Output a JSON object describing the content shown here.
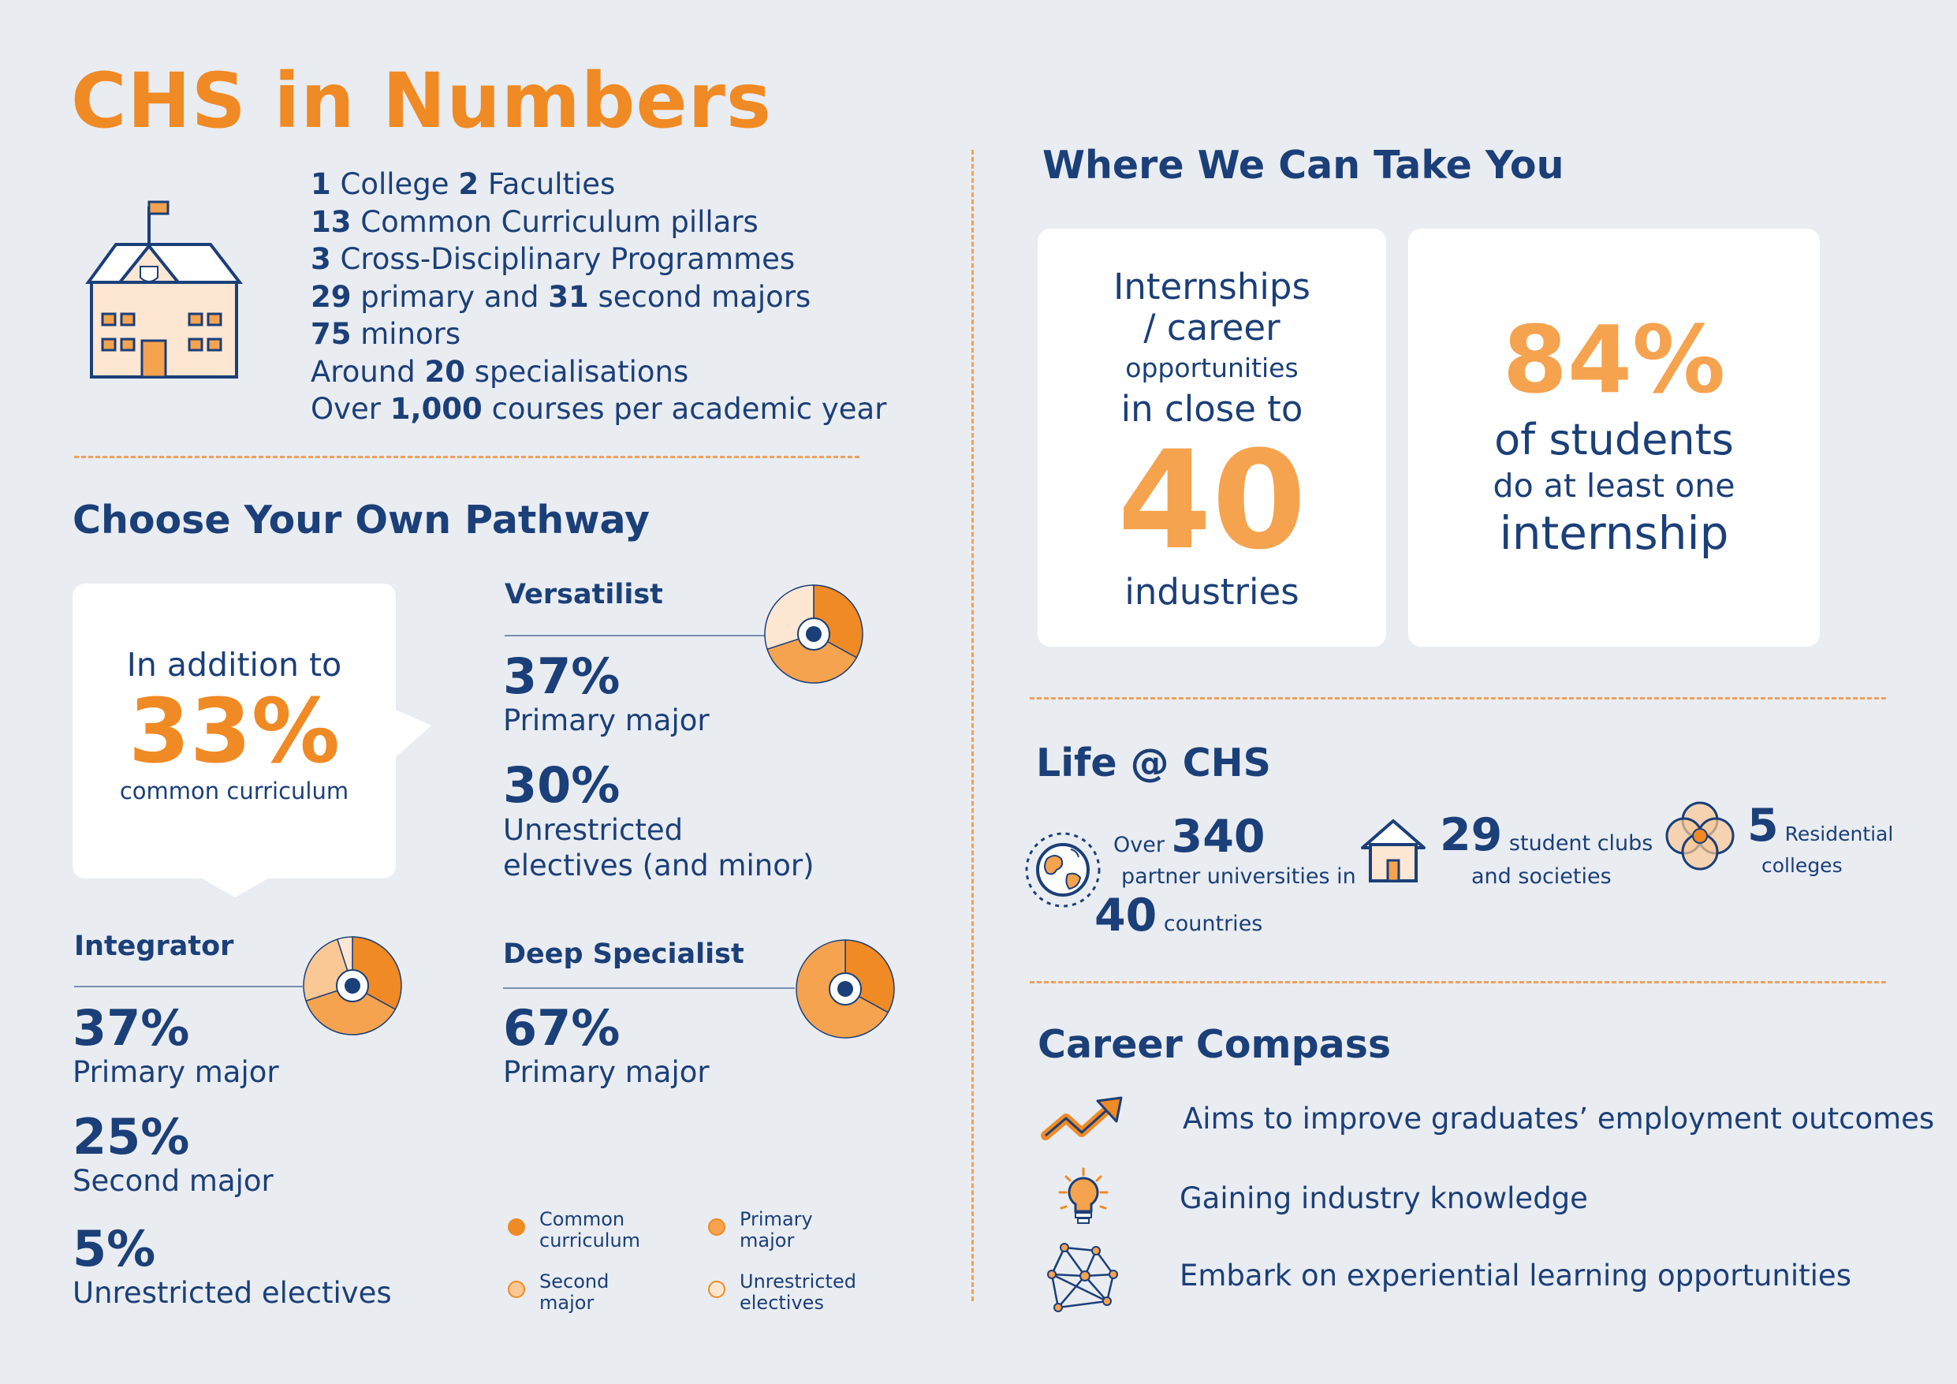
{
  "title": "CHS in Numbers",
  "facts": [
    {
      "num": "1",
      "text": " College ",
      "num2": "2",
      "text2": " Faculties"
    },
    {
      "num": "13",
      "text": " Common Curriculum pillars"
    },
    {
      "num": "3",
      "text": " Cross-Disciplinary Programmes"
    },
    {
      "num": "29",
      "text": " primary and ",
      "num2": "31",
      "text2": " second majors"
    },
    {
      "num": "75",
      "text": " minors"
    },
    {
      "pre": "Around ",
      "num": "20",
      "text": " specialisations"
    },
    {
      "pre": "Over ",
      "num": "1,000",
      "text": " courses per academic year"
    }
  ],
  "pathway": {
    "heading": "Choose Your Own Pathway",
    "callout": {
      "line1": "In addition to",
      "pct": "33%",
      "line2": "common curriculum"
    },
    "versatilist": {
      "name": "Versatilist",
      "s1_pct": "37%",
      "s1_label": "Primary major",
      "s2_pct": "30%",
      "s2_label_1": "Unrestricted",
      "s2_label_2": "electives (and minor)"
    },
    "integrator": {
      "name": "Integrator",
      "s1_pct": "37%",
      "s1_label": "Primary major",
      "s2_pct": "25%",
      "s2_label": "Second major",
      "s3_pct": "5%",
      "s3_label": "Unrestricted electives"
    },
    "deep": {
      "name": "Deep Specialist",
      "s1_pct": "67%",
      "s1_label": "Primary major"
    },
    "legend": [
      {
        "l1": "Common",
        "l2": "curriculum",
        "color": "#f08a24"
      },
      {
        "l1": "Primary",
        "l2": "major",
        "color": "#f5a34f"
      },
      {
        "l1": "Second",
        "l2": "major",
        "color": "#f9c894"
      },
      {
        "l1": "Unrestricted",
        "l2": "electives",
        "color": "#fde6d2"
      }
    ]
  },
  "chart_data": [
    {
      "type": "pie",
      "name": "Versatilist",
      "categories": [
        "Common curriculum",
        "Primary major",
        "Unrestricted electives"
      ],
      "values": [
        33,
        37,
        30
      ]
    },
    {
      "type": "pie",
      "name": "Integrator",
      "categories": [
        "Common curriculum",
        "Primary major",
        "Second major",
        "Unrestricted electives"
      ],
      "values": [
        33,
        37,
        25,
        5
      ]
    },
    {
      "type": "pie",
      "name": "Deep Specialist",
      "categories": [
        "Common curriculum",
        "Primary major"
      ],
      "values": [
        33,
        67
      ]
    }
  ],
  "where": {
    "heading": "Where We Can Take You",
    "card1": {
      "l1": "Internships",
      "l2": "/ career",
      "l3": "opportunities",
      "l4": "in close to",
      "big": "40",
      "l5": "industries"
    },
    "card2": {
      "big": "84%",
      "l1": "of students",
      "l2": "do at least one",
      "l3": "internship"
    }
  },
  "life": {
    "heading": "Life @ CHS",
    "partners": {
      "pre": "Over ",
      "num": "340",
      "l1": "partner universities in",
      "num2": "40",
      "l2": " countries"
    },
    "clubs": {
      "num": "29",
      "l1": " student clubs",
      "l2": "and societies"
    },
    "colleges": {
      "num": "5",
      "l1": " Residential",
      "l2": "colleges"
    }
  },
  "compass": {
    "heading": "Career Compass",
    "items": [
      {
        "text": "Aims to improve graduates’ employment outcomes",
        "icon": "trend-up-icon"
      },
      {
        "text": "Gaining industry knowledge",
        "icon": "lightbulb-icon"
      },
      {
        "text": "Embark on experiential learning opportunities",
        "icon": "network-icon"
      }
    ]
  },
  "colors": {
    "navy": "#1b3f78",
    "orange": "#f08a24",
    "light_orange": "#f5a34f",
    "background": "#e9ecf1"
  }
}
